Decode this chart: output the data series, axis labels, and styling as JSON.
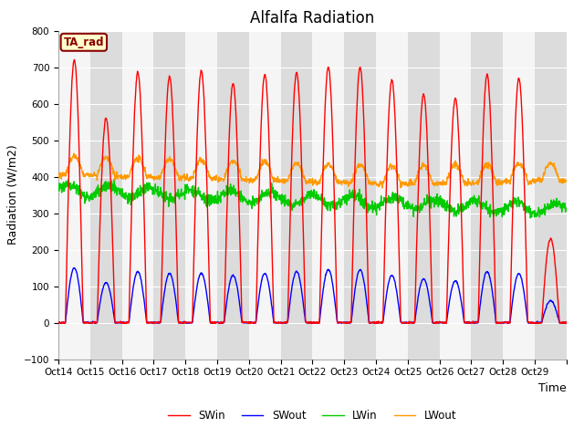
{
  "title": "Alfalfa Radiation",
  "xlabel": "Time",
  "ylabel": "Radiation (W/m2)",
  "ylim": [
    -100,
    800
  ],
  "annotation": "TA_rad",
  "annotation_color": "#8b0000",
  "annotation_bg": "#ffffcc",
  "annotation_border": "#8b0000",
  "fig_bg": "#ffffff",
  "plot_bg": "#e8e8e8",
  "band_light": "#f5f5f5",
  "band_dark": "#dcdcdc",
  "series": [
    "SWin",
    "SWout",
    "LWin",
    "LWout"
  ],
  "colors": {
    "SWin": "#ff0000",
    "SWout": "#0000ff",
    "LWin": "#00cc00",
    "LWout": "#ff9900"
  },
  "line_widths": {
    "SWin": 1.0,
    "SWout": 1.0,
    "LWin": 1.0,
    "LWout": 1.0
  },
  "xtick_labels": [
    "Oct 14",
    "Oct 15",
    "Oct 16",
    "Oct 17",
    "Oct 18",
    "Oct 19",
    "Oct 20",
    "Oct 21",
    "Oct 22",
    "Oct 23",
    "Oct 24",
    "Oct 25",
    "Oct 26",
    "Oct 27",
    "Oct 28",
    "Oct 29"
  ],
  "n_days": 16,
  "pts_per_day": 96,
  "swin_peaks": [
    720,
    560,
    685,
    675,
    690,
    655,
    680,
    685,
    700,
    700,
    665,
    625,
    615,
    680,
    670,
    230
  ],
  "swout_peaks": [
    150,
    110,
    140,
    135,
    135,
    130,
    135,
    140,
    145,
    145,
    130,
    120,
    115,
    140,
    135,
    60
  ],
  "title_fontsize": 12,
  "axis_label_fontsize": 9,
  "tick_fontsize": 7.5,
  "legend_fontsize": 8.5
}
